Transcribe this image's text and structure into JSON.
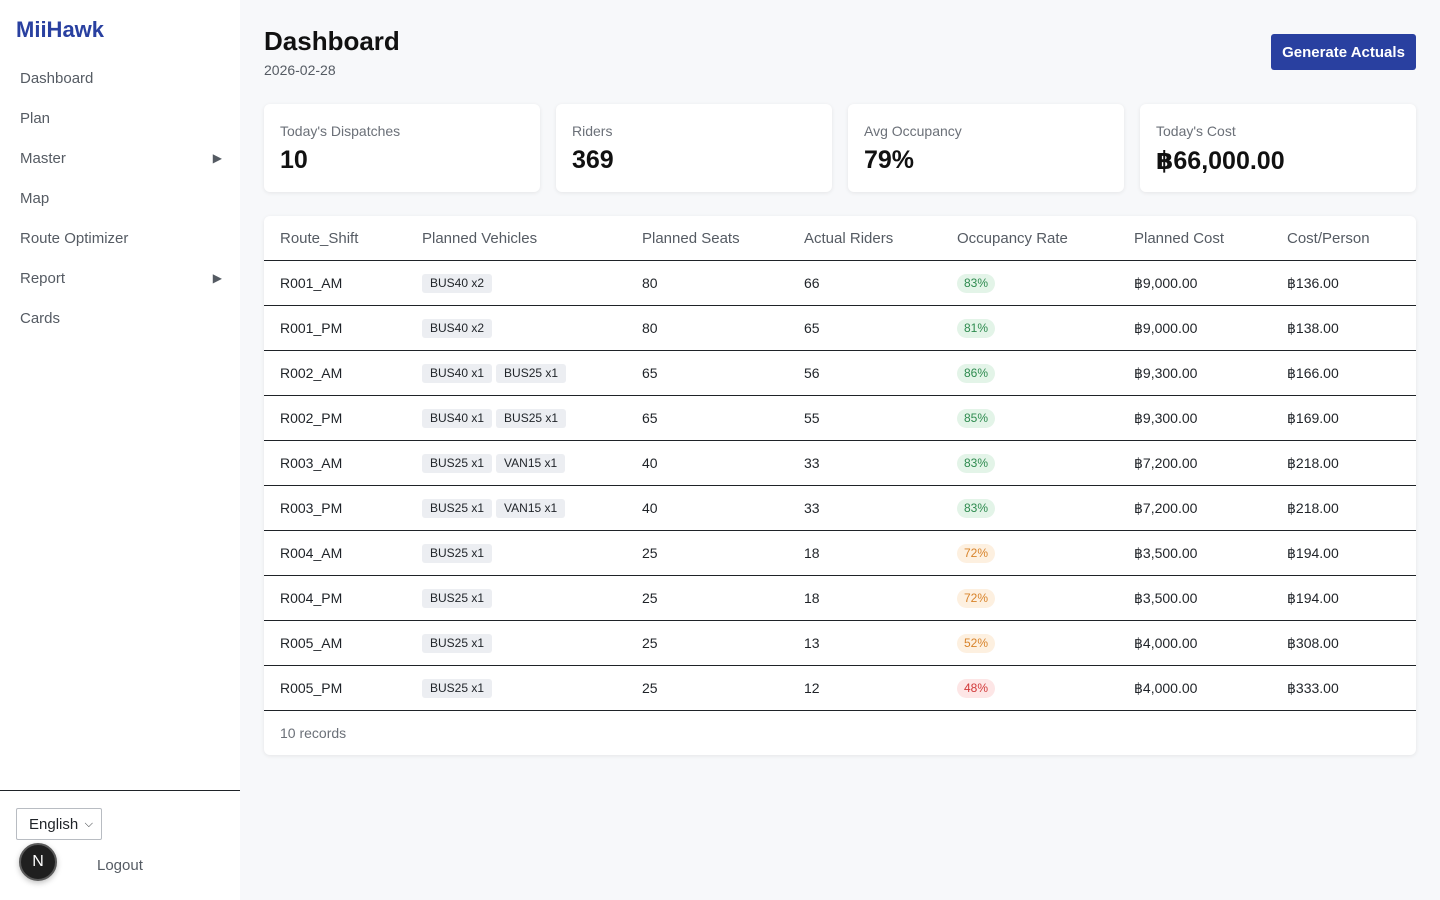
{
  "app": {
    "brand": "MiiHawk"
  },
  "sidebar": {
    "items": [
      {
        "label": "Dashboard",
        "has_submenu": false
      },
      {
        "label": "Plan",
        "has_submenu": false
      },
      {
        "label": "Master",
        "has_submenu": true
      },
      {
        "label": "Map",
        "has_submenu": false
      },
      {
        "label": "Route Optimizer",
        "has_submenu": false
      },
      {
        "label": "Report",
        "has_submenu": true
      },
      {
        "label": "Cards",
        "has_submenu": false
      }
    ],
    "language": "English",
    "avatar_letter": "N",
    "logout_label": "Logout"
  },
  "header": {
    "title": "Dashboard",
    "date": "2026-02-28",
    "action_label": "Generate Actuals"
  },
  "stats": [
    {
      "label": "Today's Dispatches",
      "value": "10"
    },
    {
      "label": "Riders",
      "value": "369"
    },
    {
      "label": "Avg Occupancy",
      "value": "79%"
    },
    {
      "label": "Today's Cost",
      "value": "฿66,000.00"
    }
  ],
  "table": {
    "columns": [
      "Route_Shift",
      "Planned Vehicles",
      "Planned Seats",
      "Actual Riders",
      "Occupancy Rate",
      "Planned Cost",
      "Cost/Person"
    ],
    "rows": [
      {
        "route": "R001_AM",
        "vehicles": [
          "BUS40 x2"
        ],
        "seats": "80",
        "riders": "66",
        "occupancy": "83%",
        "level": "good",
        "cost": "฿9,000.00",
        "per_person": "฿136.00"
      },
      {
        "route": "R001_PM",
        "vehicles": [
          "BUS40 x2"
        ],
        "seats": "80",
        "riders": "65",
        "occupancy": "81%",
        "level": "good",
        "cost": "฿9,000.00",
        "per_person": "฿138.00"
      },
      {
        "route": "R002_AM",
        "vehicles": [
          "BUS40 x1",
          "BUS25 x1"
        ],
        "seats": "65",
        "riders": "56",
        "occupancy": "86%",
        "level": "good",
        "cost": "฿9,300.00",
        "per_person": "฿166.00"
      },
      {
        "route": "R002_PM",
        "vehicles": [
          "BUS40 x1",
          "BUS25 x1"
        ],
        "seats": "65",
        "riders": "55",
        "occupancy": "85%",
        "level": "good",
        "cost": "฿9,300.00",
        "per_person": "฿169.00"
      },
      {
        "route": "R003_AM",
        "vehicles": [
          "BUS25 x1",
          "VAN15 x1"
        ],
        "seats": "40",
        "riders": "33",
        "occupancy": "83%",
        "level": "good",
        "cost": "฿7,200.00",
        "per_person": "฿218.00"
      },
      {
        "route": "R003_PM",
        "vehicles": [
          "BUS25 x1",
          "VAN15 x1"
        ],
        "seats": "40",
        "riders": "33",
        "occupancy": "83%",
        "level": "good",
        "cost": "฿7,200.00",
        "per_person": "฿218.00"
      },
      {
        "route": "R004_AM",
        "vehicles": [
          "BUS25 x1"
        ],
        "seats": "25",
        "riders": "18",
        "occupancy": "72%",
        "level": "warn",
        "cost": "฿3,500.00",
        "per_person": "฿194.00"
      },
      {
        "route": "R004_PM",
        "vehicles": [
          "BUS25 x1"
        ],
        "seats": "25",
        "riders": "18",
        "occupancy": "72%",
        "level": "warn",
        "cost": "฿3,500.00",
        "per_person": "฿194.00"
      },
      {
        "route": "R005_AM",
        "vehicles": [
          "BUS25 x1"
        ],
        "seats": "25",
        "riders": "13",
        "occupancy": "52%",
        "level": "warn",
        "cost": "฿4,000.00",
        "per_person": "฿308.00"
      },
      {
        "route": "R005_PM",
        "vehicles": [
          "BUS25 x1"
        ],
        "seats": "25",
        "riders": "12",
        "occupancy": "48%",
        "level": "bad",
        "cost": "฿4,000.00",
        "per_person": "฿333.00"
      }
    ],
    "footer": "10 records"
  },
  "colors": {
    "brand": "#2940a0",
    "good_bg": "#e3f4e8",
    "good_text": "#2e8b4f",
    "warn_bg": "#fdf0e0",
    "warn_text": "#d8832a",
    "bad_bg": "#fde6e6",
    "bad_text": "#d13a3a"
  },
  "icons": {
    "submenu": "chevron-right-icon",
    "language_dropdown": "chevron-down-icon"
  }
}
